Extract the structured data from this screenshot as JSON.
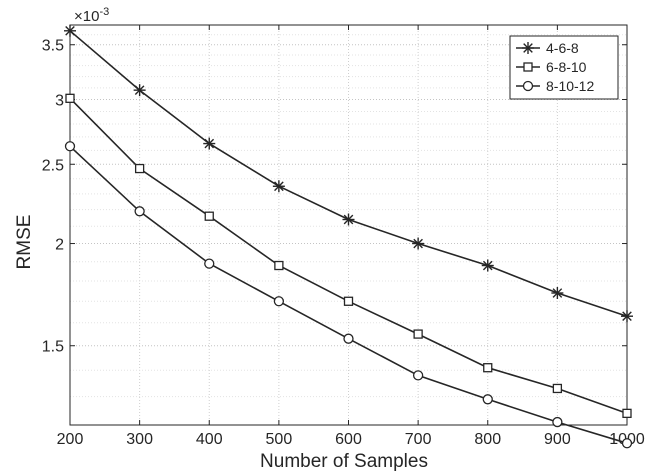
{
  "chart_data": {
    "type": "line",
    "y_scale": "log",
    "xlabel": "Number of Samples",
    "ylabel": "RMSE",
    "y_multiplier": "×10",
    "y_exponent": "-3",
    "x": [
      200,
      300,
      400,
      500,
      600,
      700,
      800,
      900,
      1000
    ],
    "xlim": [
      200,
      1000
    ],
    "ylim": [
      1.2,
      3.7
    ],
    "x_ticks": [
      "200",
      "300",
      "400",
      "500",
      "600",
      "700",
      "800",
      "900",
      "1000"
    ],
    "y_ticks": [
      {
        "value": 1.5,
        "label": "1.5"
      },
      {
        "value": 2,
        "label": "2"
      },
      {
        "value": 2.5,
        "label": "2.5"
      },
      {
        "value": 3,
        "label": "3"
      },
      {
        "value": 3.5,
        "label": "3.5"
      }
    ],
    "grid": true,
    "legend_position": "top-right",
    "series": [
      {
        "name": "4-6-8",
        "marker": "asterisk",
        "values": [
          3.64,
          3.08,
          2.65,
          2.35,
          2.14,
          2.0,
          1.88,
          1.74,
          1.63
        ]
      },
      {
        "name": "6-8-10",
        "marker": "square",
        "values": [
          3.01,
          2.47,
          2.16,
          1.88,
          1.7,
          1.55,
          1.41,
          1.33,
          1.24
        ]
      },
      {
        "name": "8-10-12",
        "marker": "circle",
        "values": [
          2.63,
          2.19,
          1.89,
          1.7,
          1.53,
          1.38,
          1.29,
          1.21,
          1.14
        ]
      }
    ]
  }
}
